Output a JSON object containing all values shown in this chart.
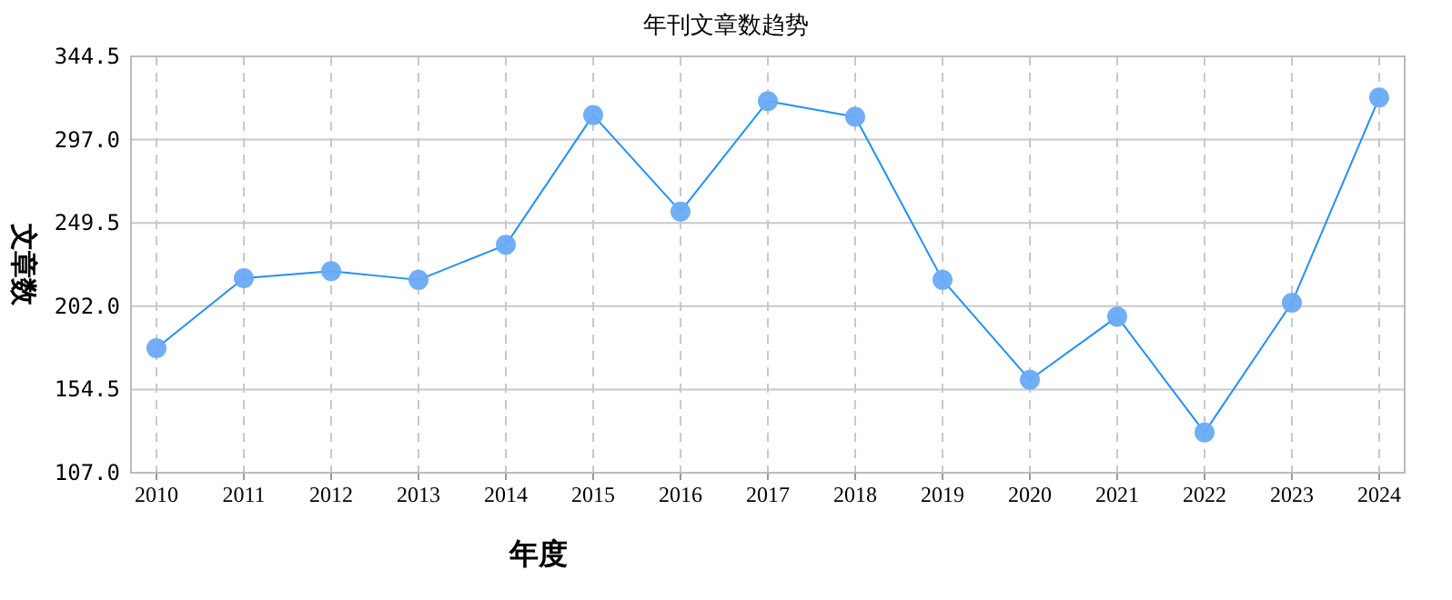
{
  "chart_data": {
    "type": "line",
    "title": "年刊文章数趋势",
    "xlabel": "年度",
    "ylabel": "文章数",
    "categories": [
      "2010",
      "2011",
      "2012",
      "2013",
      "2014",
      "2015",
      "2016",
      "2017",
      "2018",
      "2019",
      "2020",
      "2021",
      "2022",
      "2023",
      "2024"
    ],
    "series": [
      {
        "color": "#1e90ff",
        "values": [
          178,
          218,
          222,
          217,
          237,
          311,
          256,
          319,
          310,
          217,
          160,
          196,
          130,
          204,
          321
        ]
      }
    ],
    "ylim": [
      107,
      344.5
    ],
    "yticks": [
      {
        "value": 107,
        "label": "107.0"
      },
      {
        "value": 154.5,
        "label": "154.5"
      },
      {
        "value": 202,
        "label": "202.0"
      },
      {
        "value": 249.5,
        "label": "249.5"
      },
      {
        "value": 297,
        "label": "297.0"
      },
      {
        "value": 344.5,
        "label": "344.5"
      }
    ],
    "grid": true,
    "marker": "circle",
    "line_style": "solid"
  }
}
